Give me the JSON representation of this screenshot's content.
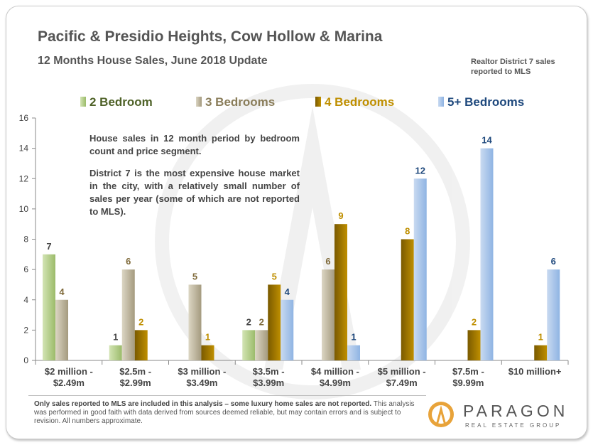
{
  "header": {
    "title": "Pacific & Presidio Heights, Cow Hollow & Marina",
    "subtitle": "12 Months House Sales, June 2018 Update",
    "source_line1": "Realtor District 7 sales",
    "source_line2": "reported to MLS"
  },
  "note": {
    "para1": "House sales in 12 month period by bedroom count and price segment.",
    "para2": "District 7 is the most expensive house market in the city, with a relatively small number of sales per year (some of which are not reported to MLS)."
  },
  "footer": {
    "bold": "Only sales reported to MLS are included in this analysis – some luxury home sales are not reported.",
    "rest": " This analysis was performed in good faith with data derived from sources deemed reliable, but may contain errors and is subject to revision.  All numbers approximate."
  },
  "logo": {
    "name": "PARAGON",
    "sub": "REAL ESTATE GROUP"
  },
  "chart_data": {
    "type": "bar",
    "title": "12 Months House Sales, June 2018 Update",
    "xlabel": "",
    "ylabel": "",
    "ylim": [
      0,
      16
    ],
    "yticks": [
      "0",
      "2",
      "4",
      "6",
      "8",
      "10",
      "12",
      "14",
      "16"
    ],
    "categories": [
      [
        "$2 million -",
        "$2.49m"
      ],
      [
        "$2.5m -",
        "$2.99m"
      ],
      [
        "$3 million -",
        "$3.49m"
      ],
      [
        "$3.5m -",
        "$3.99m"
      ],
      [
        "$4 million -",
        "$4.99m"
      ],
      [
        "$5 million -",
        "$7.49m"
      ],
      [
        "$7.5m -",
        "$9.99m"
      ],
      [
        "$10 million+"
      ]
    ],
    "legend_position": "top",
    "series": [
      {
        "name": "2 Bedroom",
        "color": "#9bbb6a",
        "colorLight": "#d3e4b4",
        "labelColor": "#444444",
        "legendColor": "#4f6228",
        "values": [
          7,
          1,
          null,
          2,
          null,
          null,
          null,
          null
        ]
      },
      {
        "name": "3 Bedrooms",
        "color": "#a49a7e",
        "colorLight": "#dcd6c4",
        "labelColor": "#7f6a3a",
        "legendColor": "#8a7d5a",
        "values": [
          4,
          6,
          5,
          2,
          6,
          null,
          null,
          null
        ]
      },
      {
        "name": "4 Bedrooms",
        "color": "#bf8f00",
        "colorLight": "#7a5a00",
        "labelColor": "#bf8f00",
        "legendColor": "#bf8f00",
        "values": [
          null,
          2,
          1,
          5,
          9,
          8,
          2,
          1
        ]
      },
      {
        "name": "5+ Bedrooms",
        "color": "#8fb4e3",
        "colorLight": "#c9daf1",
        "labelColor": "#1f497d",
        "legendColor": "#1f497d",
        "values": [
          null,
          null,
          null,
          4,
          1,
          12,
          14,
          6
        ]
      }
    ]
  }
}
